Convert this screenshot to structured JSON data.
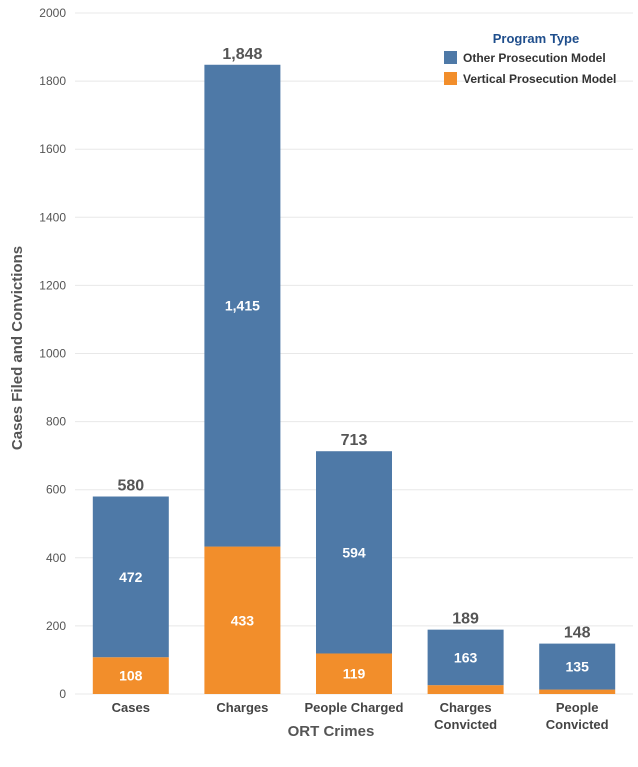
{
  "chart_data": {
    "type": "bar",
    "stacked": true,
    "categories": [
      "Cases",
      "Charges",
      "People Charged",
      "Charges Convicted",
      "People Convicted"
    ],
    "category_lines": [
      [
        "Cases"
      ],
      [
        "Charges"
      ],
      [
        "People Charged"
      ],
      [
        "Charges",
        "Convicted"
      ],
      [
        "People",
        "Convicted"
      ]
    ],
    "series": [
      {
        "name": "Vertical Prosecution Model",
        "color": "#f28e2b",
        "values": [
          108,
          433,
          119,
          26,
          13
        ]
      },
      {
        "name": "Other Prosecution Model",
        "color": "#4e79a7",
        "values": [
          472,
          1415,
          594,
          163,
          135
        ]
      }
    ],
    "segment_labels": [
      [
        "108",
        "433",
        "119",
        "",
        ""
      ],
      [
        "472",
        "1,415",
        "594",
        "163",
        "135"
      ]
    ],
    "totals": [
      580,
      1848,
      713,
      189,
      148
    ],
    "total_labels": [
      "580",
      "1,848",
      "713",
      "189",
      "148"
    ],
    "xlabel": "ORT Crimes",
    "ylabel": "Cases Filed and Convictions",
    "ylim": [
      0,
      2000
    ],
    "yticks": [
      0,
      200,
      400,
      600,
      800,
      1000,
      1200,
      1400,
      1600,
      1800,
      2000
    ],
    "grid": true,
    "legend": {
      "title": "Program Type",
      "placement": "top-right",
      "entries": [
        {
          "label": "Other Prosecution Model",
          "color": "#4e79a7"
        },
        {
          "label": "Vertical Prosecution Model",
          "color": "#f28e2b"
        }
      ]
    }
  }
}
